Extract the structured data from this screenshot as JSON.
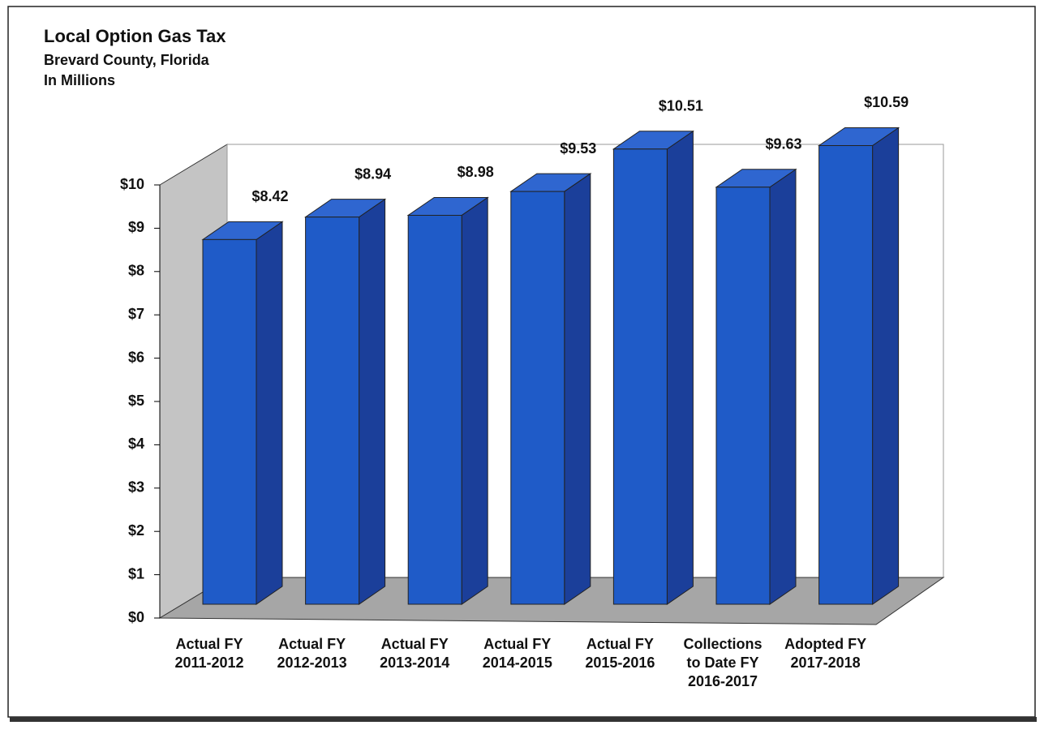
{
  "chart_data": {
    "type": "bar3d",
    "title": "Local Option Gas Tax",
    "subtitle": [
      "Brevard County, Florida",
      "In Millions"
    ],
    "categories": [
      [
        "Actual FY",
        "2011-2012"
      ],
      [
        "Actual FY",
        "2012-2013"
      ],
      [
        "Actual FY",
        "2013-2014"
      ],
      [
        "Actual FY",
        "2014-2015"
      ],
      [
        "Actual FY",
        "2015-2016"
      ],
      [
        "Collections",
        "to Date FY",
        "2016-2017"
      ],
      [
        "Adopted FY",
        "2017-2018"
      ]
    ],
    "values": [
      8.42,
      8.94,
      8.98,
      9.53,
      10.51,
      9.63,
      10.59
    ],
    "value_labels": [
      "$8.42",
      "$8.94",
      "$8.98",
      "$9.53",
      "$10.51",
      "$9.63",
      "$10.59"
    ],
    "color": "#1f5bc8",
    "ylim": [
      0,
      10
    ],
    "yticks": [
      {
        "value": 0,
        "label": "$0"
      },
      {
        "value": 1,
        "label": "$1"
      },
      {
        "value": 2,
        "label": "$2"
      },
      {
        "value": 3,
        "label": "$3"
      },
      {
        "value": 4,
        "label": "$4"
      },
      {
        "value": 5,
        "label": "$5"
      },
      {
        "value": 6,
        "label": "$6"
      },
      {
        "value": 7,
        "label": "$7"
      },
      {
        "value": 8,
        "label": "$8"
      },
      {
        "value": 9,
        "label": "$9"
      },
      {
        "value": 10,
        "label": "$10"
      }
    ]
  }
}
